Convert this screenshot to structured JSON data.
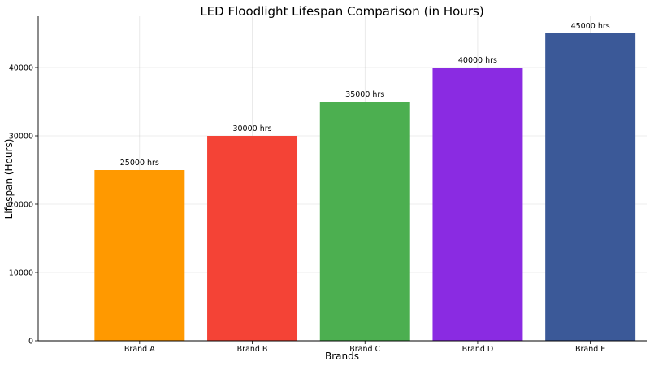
{
  "chart_data": {
    "type": "bar",
    "title": "LED Floodlight Lifespan Comparison (in Hours)",
    "xlabel": "Brands",
    "ylabel": "Lifespan (Hours)",
    "categories": [
      "Brand A",
      "Brand B",
      "Brand C",
      "Brand D",
      "Brand E"
    ],
    "values": [
      25000,
      30000,
      35000,
      40000,
      45000
    ],
    "data_labels": [
      "25000 hrs",
      "30000 hrs",
      "35000 hrs",
      "40000 hrs",
      "45000 hrs"
    ],
    "colors": [
      "#ff9900",
      "#f44336",
      "#4caf50",
      "#8a2be2",
      "#3b5998"
    ],
    "ylim": [
      0,
      47500
    ],
    "yticks": [
      0,
      10000,
      20000,
      30000,
      40000
    ],
    "ytick_labels": [
      "0",
      "10000",
      "20000",
      "30000",
      "40000"
    ],
    "grid": true
  }
}
